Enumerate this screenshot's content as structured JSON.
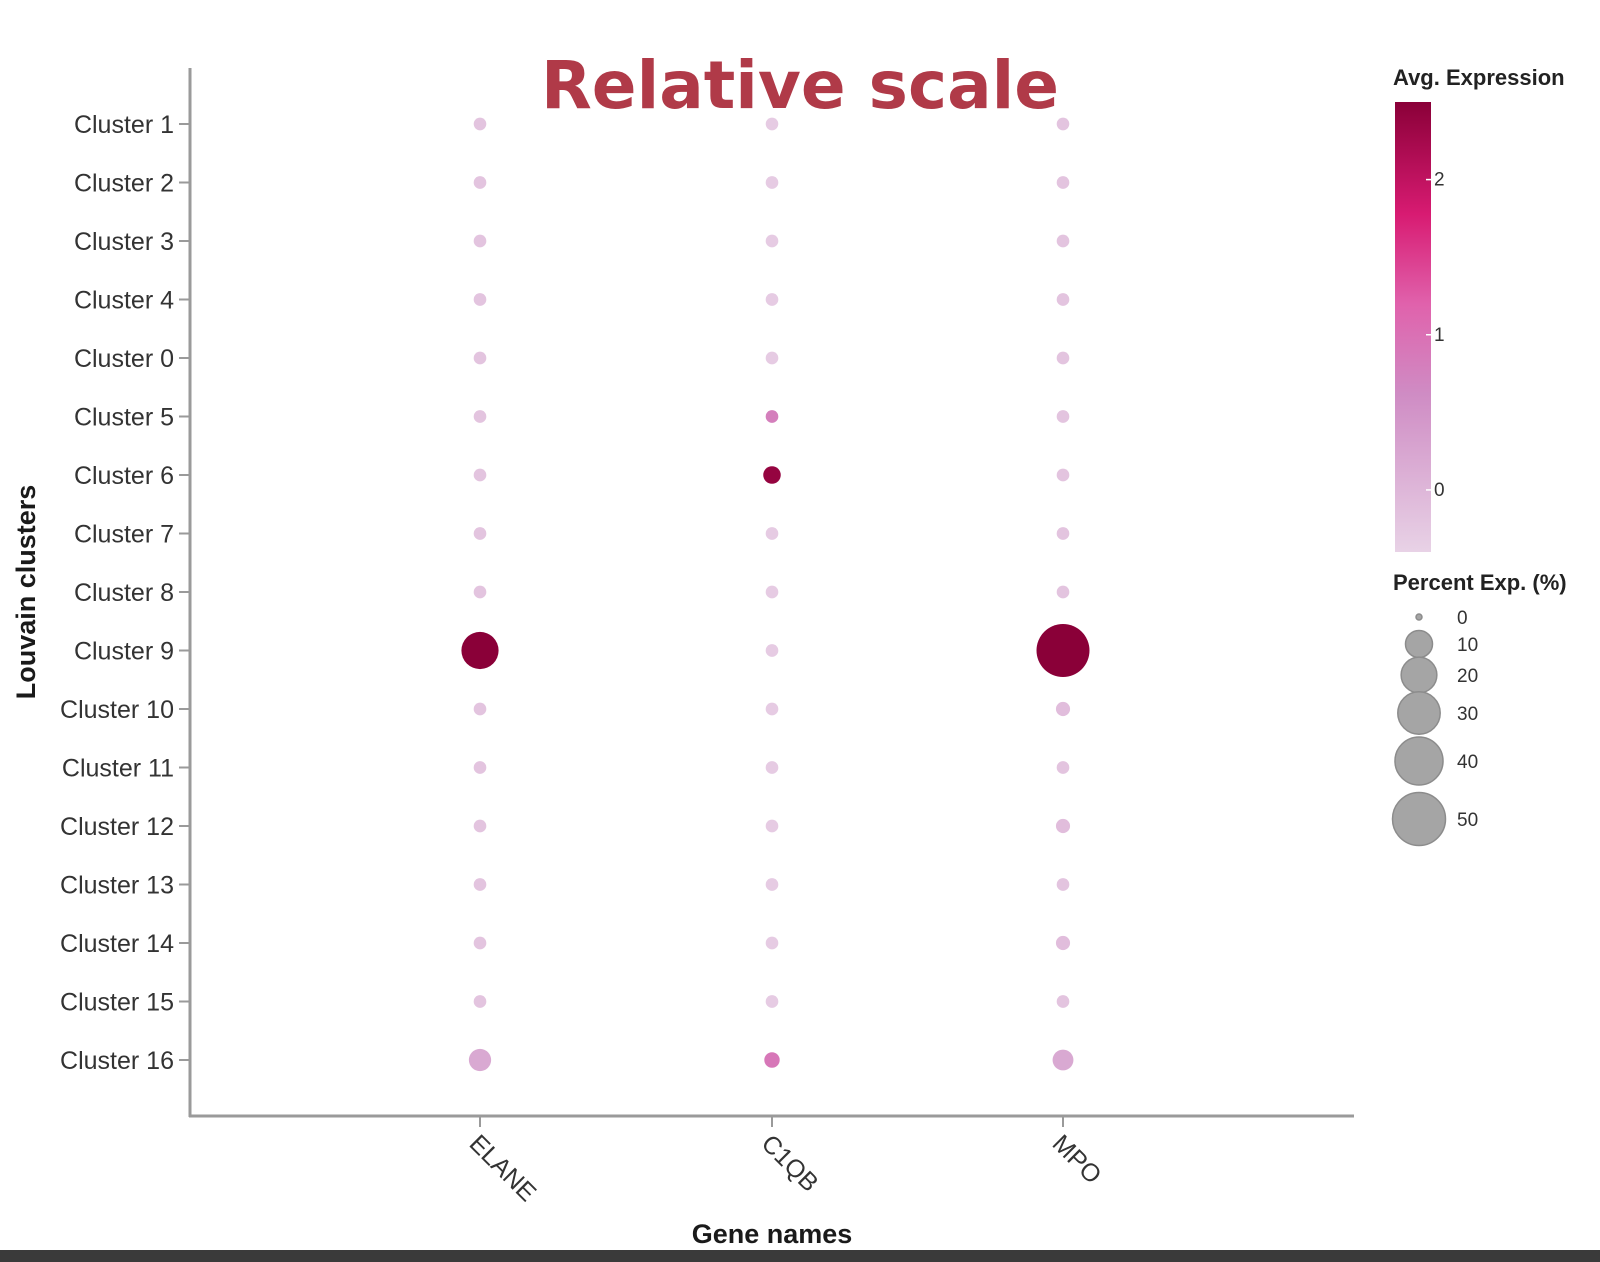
{
  "colors": {
    "title": "#b03a48",
    "axis": "#9a9a9a",
    "expr_low": "#e8cde6",
    "expr_mid": "#e0459a",
    "expr_high": "#8a0038",
    "size_legend_fill": "#a5a5a5",
    "size_legend_stroke": "#8c8c8c"
  },
  "chart_data": {
    "type": "scatter",
    "subtype": "dot-plot",
    "title": "Relative scale",
    "xlabel": "Gene names",
    "ylabel": "Louvain clusters",
    "categories_x": [
      "ELANE",
      "C1QB",
      "MPO"
    ],
    "categories_y": [
      "Cluster 1",
      "Cluster 2",
      "Cluster 3",
      "Cluster 4",
      "Cluster 0",
      "Cluster 5",
      "Cluster 6",
      "Cluster 7",
      "Cluster 8",
      "Cluster 9",
      "Cluster 10",
      "Cluster 11",
      "Cluster 12",
      "Cluster 13",
      "Cluster 14",
      "Cluster 15",
      "Cluster 16"
    ],
    "color_legend": {
      "title": "Avg. Expression",
      "ticks": [
        "2",
        "1",
        "0"
      ],
      "tick_values": [
        2,
        1,
        0
      ],
      "range": [
        -0.4,
        2.5
      ]
    },
    "size_legend": {
      "title": "Percent Exp. (%)",
      "labels": [
        "0",
        "10",
        "20",
        "30",
        "40",
        "50"
      ],
      "values": [
        0,
        10,
        20,
        30,
        40,
        50
      ]
    },
    "points": [
      {
        "gene": "ELANE",
        "cluster": "Cluster 1",
        "avg_expression": -0.2,
        "percent_exp": 1
      },
      {
        "gene": "ELANE",
        "cluster": "Cluster 2",
        "avg_expression": -0.2,
        "percent_exp": 1
      },
      {
        "gene": "ELANE",
        "cluster": "Cluster 3",
        "avg_expression": -0.2,
        "percent_exp": 1
      },
      {
        "gene": "ELANE",
        "cluster": "Cluster 4",
        "avg_expression": -0.2,
        "percent_exp": 1
      },
      {
        "gene": "ELANE",
        "cluster": "Cluster 0",
        "avg_expression": -0.2,
        "percent_exp": 1
      },
      {
        "gene": "ELANE",
        "cluster": "Cluster 5",
        "avg_expression": -0.2,
        "percent_exp": 1
      },
      {
        "gene": "ELANE",
        "cluster": "Cluster 6",
        "avg_expression": -0.2,
        "percent_exp": 1
      },
      {
        "gene": "ELANE",
        "cluster": "Cluster 7",
        "avg_expression": -0.2,
        "percent_exp": 1
      },
      {
        "gene": "ELANE",
        "cluster": "Cluster 8",
        "avg_expression": -0.2,
        "percent_exp": 1
      },
      {
        "gene": "ELANE",
        "cluster": "Cluster 9",
        "avg_expression": 2.5,
        "percent_exp": 22
      },
      {
        "gene": "ELANE",
        "cluster": "Cluster 10",
        "avg_expression": -0.2,
        "percent_exp": 1
      },
      {
        "gene": "ELANE",
        "cluster": "Cluster 11",
        "avg_expression": -0.2,
        "percent_exp": 1
      },
      {
        "gene": "ELANE",
        "cluster": "Cluster 12",
        "avg_expression": -0.2,
        "percent_exp": 1
      },
      {
        "gene": "ELANE",
        "cluster": "Cluster 13",
        "avg_expression": -0.2,
        "percent_exp": 1
      },
      {
        "gene": "ELANE",
        "cluster": "Cluster 14",
        "avg_expression": -0.2,
        "percent_exp": 1
      },
      {
        "gene": "ELANE",
        "cluster": "Cluster 15",
        "avg_expression": -0.2,
        "percent_exp": 1
      },
      {
        "gene": "ELANE",
        "cluster": "Cluster 16",
        "avg_expression": 0.2,
        "percent_exp": 6
      },
      {
        "gene": "C1QB",
        "cluster": "Cluster 1",
        "avg_expression": -0.3,
        "percent_exp": 1
      },
      {
        "gene": "C1QB",
        "cluster": "Cluster 2",
        "avg_expression": -0.3,
        "percent_exp": 1
      },
      {
        "gene": "C1QB",
        "cluster": "Cluster 3",
        "avg_expression": -0.3,
        "percent_exp": 1
      },
      {
        "gene": "C1QB",
        "cluster": "Cluster 4",
        "avg_expression": -0.3,
        "percent_exp": 1
      },
      {
        "gene": "C1QB",
        "cluster": "Cluster 0",
        "avg_expression": -0.3,
        "percent_exp": 1
      },
      {
        "gene": "C1QB",
        "cluster": "Cluster 5",
        "avg_expression": 0.8,
        "percent_exp": 1
      },
      {
        "gene": "C1QB",
        "cluster": "Cluster 6",
        "avg_expression": 2.4,
        "percent_exp": 3
      },
      {
        "gene": "C1QB",
        "cluster": "Cluster 7",
        "avg_expression": -0.3,
        "percent_exp": 1
      },
      {
        "gene": "C1QB",
        "cluster": "Cluster 8",
        "avg_expression": -0.3,
        "percent_exp": 1
      },
      {
        "gene": "C1QB",
        "cluster": "Cluster 9",
        "avg_expression": -0.3,
        "percent_exp": 1
      },
      {
        "gene": "C1QB",
        "cluster": "Cluster 10",
        "avg_expression": -0.3,
        "percent_exp": 1
      },
      {
        "gene": "C1QB",
        "cluster": "Cluster 11",
        "avg_expression": -0.3,
        "percent_exp": 1
      },
      {
        "gene": "C1QB",
        "cluster": "Cluster 12",
        "avg_expression": -0.3,
        "percent_exp": 1
      },
      {
        "gene": "C1QB",
        "cluster": "Cluster 13",
        "avg_expression": -0.3,
        "percent_exp": 1
      },
      {
        "gene": "C1QB",
        "cluster": "Cluster 14",
        "avg_expression": -0.3,
        "percent_exp": 1
      },
      {
        "gene": "C1QB",
        "cluster": "Cluster 15",
        "avg_expression": -0.3,
        "percent_exp": 1
      },
      {
        "gene": "C1QB",
        "cluster": "Cluster 16",
        "avg_expression": 0.9,
        "percent_exp": 2
      },
      {
        "gene": "MPO",
        "cluster": "Cluster 1",
        "avg_expression": -0.2,
        "percent_exp": 1
      },
      {
        "gene": "MPO",
        "cluster": "Cluster 2",
        "avg_expression": -0.2,
        "percent_exp": 1
      },
      {
        "gene": "MPO",
        "cluster": "Cluster 3",
        "avg_expression": -0.2,
        "percent_exp": 1
      },
      {
        "gene": "MPO",
        "cluster": "Cluster 4",
        "avg_expression": -0.2,
        "percent_exp": 1
      },
      {
        "gene": "MPO",
        "cluster": "Cluster 0",
        "avg_expression": -0.2,
        "percent_exp": 1
      },
      {
        "gene": "MPO",
        "cluster": "Cluster 5",
        "avg_expression": -0.2,
        "percent_exp": 1
      },
      {
        "gene": "MPO",
        "cluster": "Cluster 6",
        "avg_expression": -0.2,
        "percent_exp": 1
      },
      {
        "gene": "MPO",
        "cluster": "Cluster 7",
        "avg_expression": -0.2,
        "percent_exp": 1
      },
      {
        "gene": "MPO",
        "cluster": "Cluster 8",
        "avg_expression": -0.2,
        "percent_exp": 1
      },
      {
        "gene": "MPO",
        "cluster": "Cluster 9",
        "avg_expression": 2.5,
        "percent_exp": 50
      },
      {
        "gene": "MPO",
        "cluster": "Cluster 10",
        "avg_expression": -0.1,
        "percent_exp": 1.5
      },
      {
        "gene": "MPO",
        "cluster": "Cluster 11",
        "avg_expression": -0.2,
        "percent_exp": 1
      },
      {
        "gene": "MPO",
        "cluster": "Cluster 12",
        "avg_expression": -0.1,
        "percent_exp": 1.5
      },
      {
        "gene": "MPO",
        "cluster": "Cluster 13",
        "avg_expression": -0.2,
        "percent_exp": 1
      },
      {
        "gene": "MPO",
        "cluster": "Cluster 14",
        "avg_expression": -0.1,
        "percent_exp": 1.5
      },
      {
        "gene": "MPO",
        "cluster": "Cluster 15",
        "avg_expression": -0.2,
        "percent_exp": 1
      },
      {
        "gene": "MPO",
        "cluster": "Cluster 16",
        "avg_expression": 0.2,
        "percent_exp": 5
      }
    ]
  }
}
